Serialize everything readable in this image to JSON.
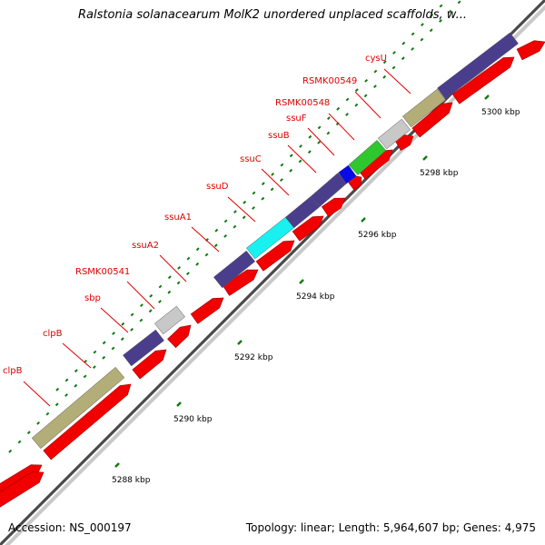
{
  "header": {
    "title": "Ralstonia solanacearum MolK2 unordered unplaced scaffolds, w..."
  },
  "footer": {
    "accession": "Accession: NS_000197",
    "summary": "Topology: linear; Length: 5,964,607 bp; Genes: 4,975"
  },
  "colors": {
    "purple": "#4a3e8c",
    "olive": "#b3ad78",
    "gray": "#c8c8c8",
    "cyan": "#19f1f1",
    "blue": "#0a0ae6",
    "green": "#2ec82e",
    "red_arrow": "#f20000",
    "label": "#e00000",
    "tick": "#0c7a0c"
  },
  "scale": {
    "labels": [
      "5288 kbp",
      "5290 kbp",
      "5292 kbp",
      "5294 kbp",
      "5296 kbp",
      "5298 kbp",
      "5300 kbp"
    ]
  },
  "genes": [
    {
      "name": "clpB",
      "color": "olive"
    },
    {
      "name": "clpB",
      "color": "olive"
    },
    {
      "name": "sbp",
      "color": "purple"
    },
    {
      "name": "RSMK00541",
      "color": "gray"
    },
    {
      "name": "ssuA2",
      "color": "purple"
    },
    {
      "name": "ssuA1",
      "color": "purple"
    },
    {
      "name": "ssuD",
      "color": "cyan"
    },
    {
      "name": "ssuC",
      "color": "purple"
    },
    {
      "name": "ssuB",
      "color": "purple"
    },
    {
      "name": "ssuF",
      "color": "blue"
    },
    {
      "name": "RSMK00548",
      "color": "green"
    },
    {
      "name": "RSMK00549",
      "color": "gray"
    },
    {
      "name": "cysU",
      "color": "olive"
    },
    {
      "name": "",
      "color": "purple"
    }
  ]
}
